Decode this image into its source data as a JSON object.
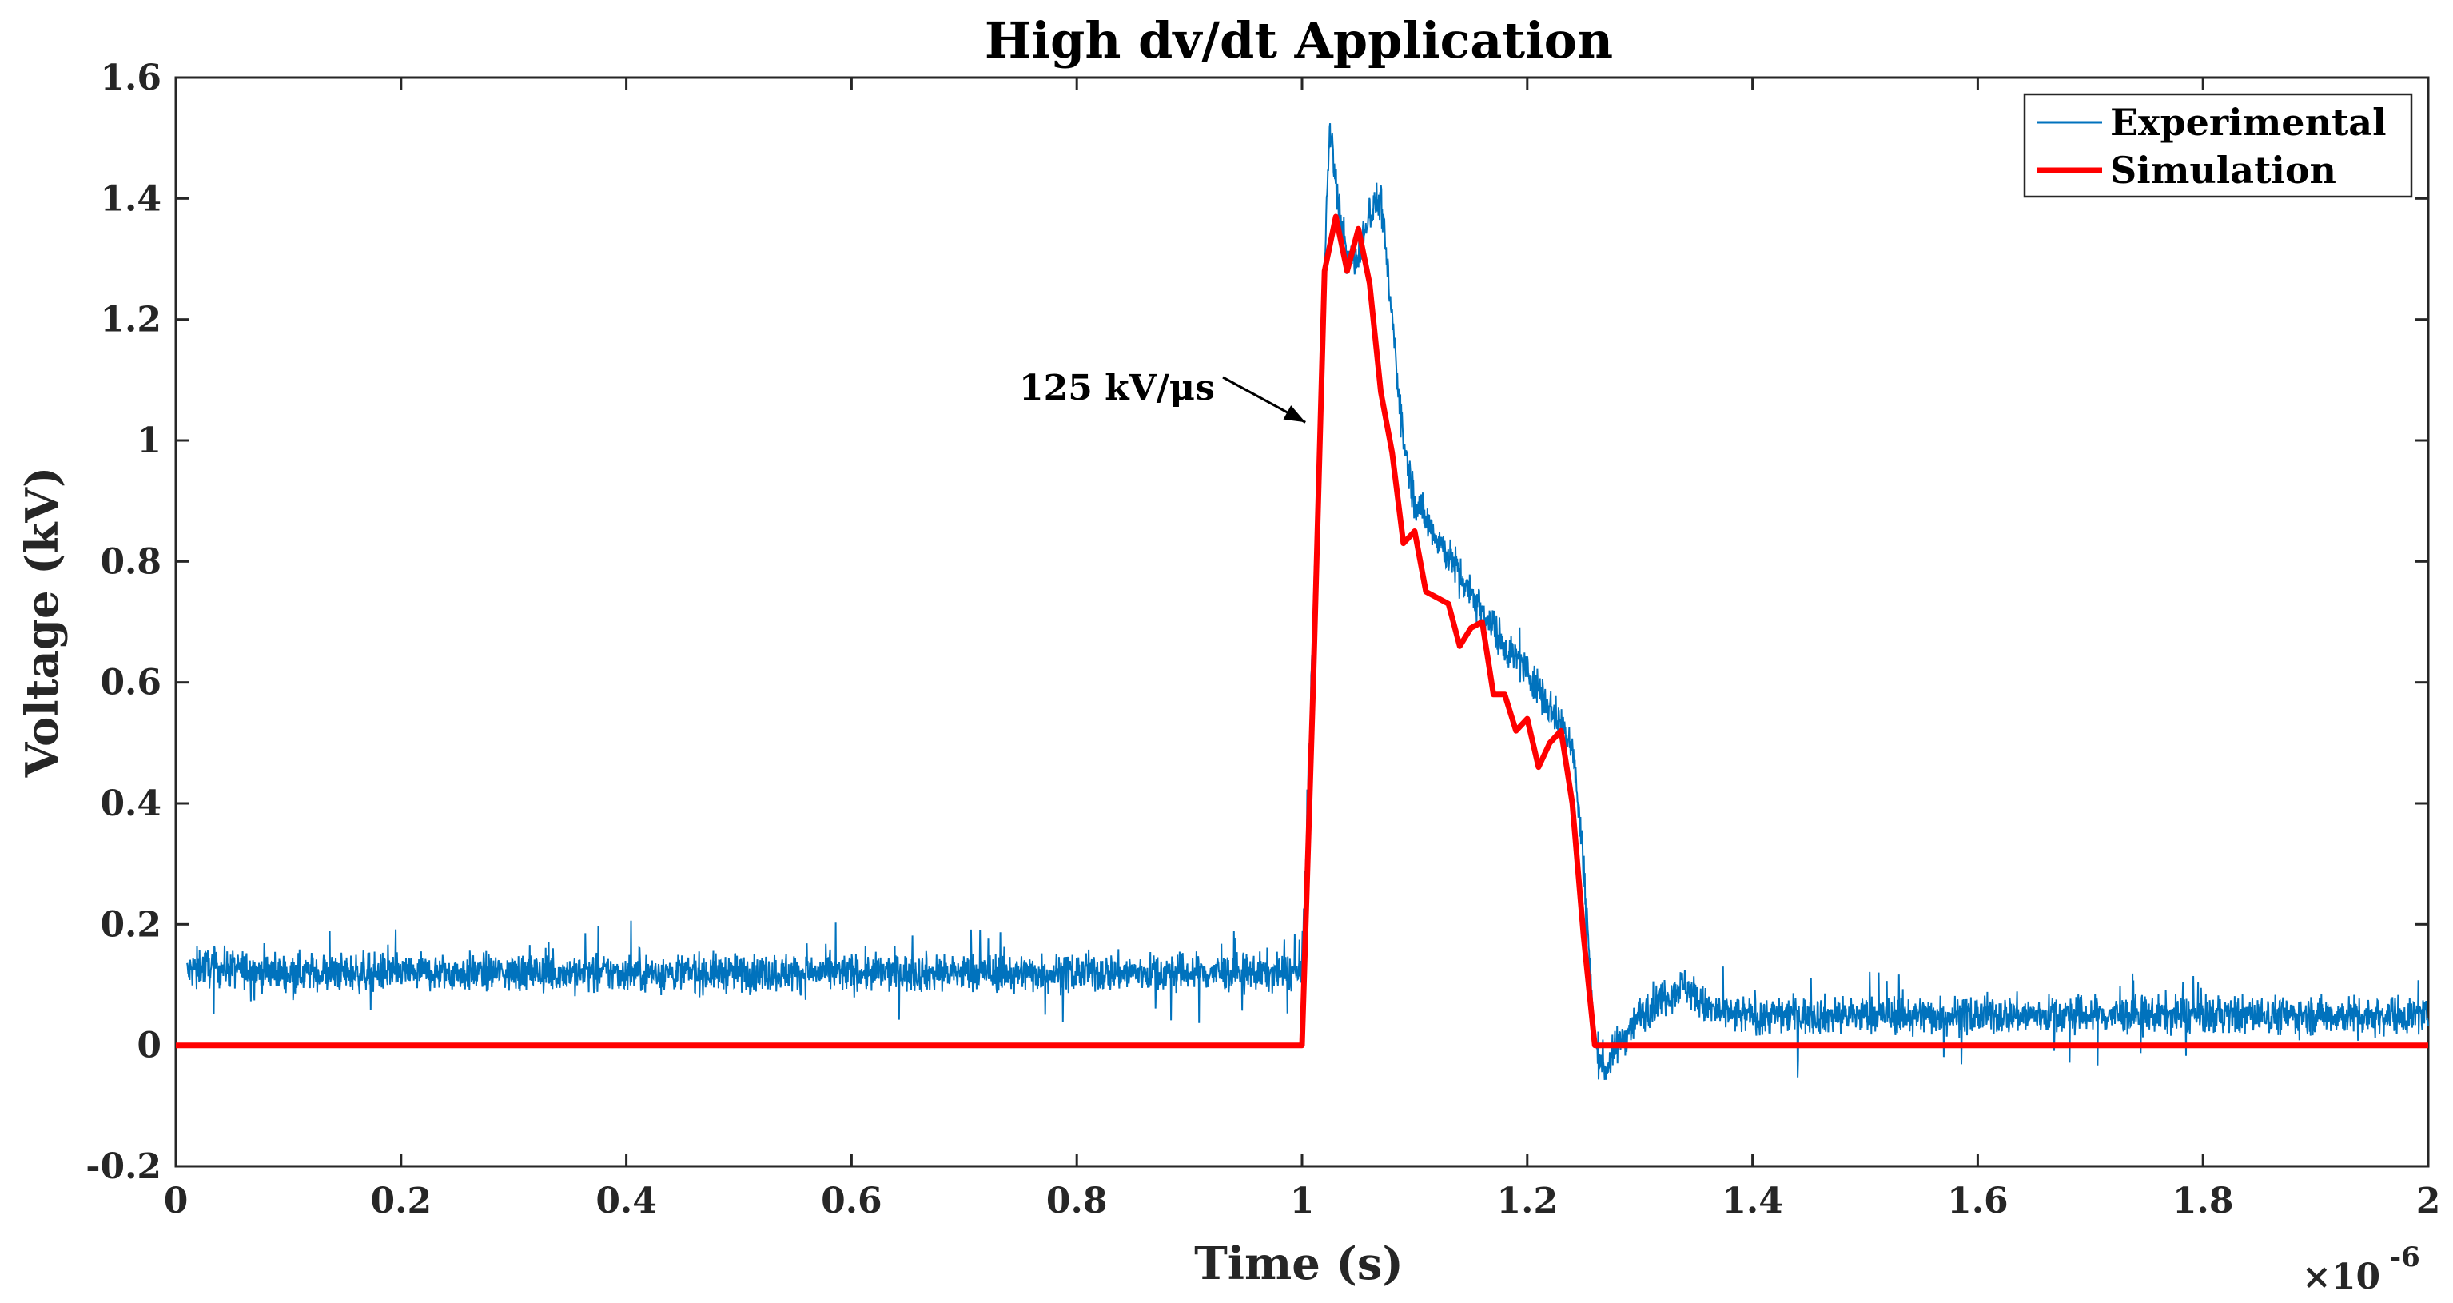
{
  "chart_data": {
    "type": "line",
    "title": "High dv/dt Application",
    "xlabel": "Time (s)",
    "ylabel": "Voltage (kV)",
    "x_exponent_label": "×10",
    "x_exponent_power": "-6",
    "xlim": [
      0,
      2
    ],
    "ylim": [
      -0.2,
      1.6
    ],
    "x_ticks": [
      0,
      0.2,
      0.4,
      0.6,
      0.8,
      1,
      1.2,
      1.4,
      1.6,
      1.8,
      2
    ],
    "x_tick_labels": [
      "0",
      "0.2",
      "0.4",
      "0.6",
      "0.8",
      "1",
      "1.2",
      "1.4",
      "1.6",
      "1.8",
      "2"
    ],
    "y_ticks": [
      -0.2,
      0,
      0.2,
      0.4,
      0.6,
      0.8,
      1,
      1.2,
      1.4,
      1.6
    ],
    "y_tick_labels": [
      "-0.2",
      "0",
      "0.2",
      "0.4",
      "0.6",
      "0.8",
      "1",
      "1.2",
      "1.4",
      "1.6"
    ],
    "grid": false,
    "legend_position": "top-right",
    "series": [
      {
        "name": "Experimental",
        "color": "#0072BD",
        "noisy": true,
        "x": [
          0.01,
          0.02,
          0.1,
          0.2,
          0.3,
          0.4,
          0.5,
          0.6,
          0.7,
          0.8,
          0.9,
          0.99,
          1.0,
          1.01,
          1.02,
          1.025,
          1.03,
          1.04,
          1.05,
          1.06,
          1.07,
          1.08,
          1.09,
          1.1,
          1.12,
          1.14,
          1.16,
          1.18,
          1.2,
          1.22,
          1.24,
          1.25,
          1.26,
          1.27,
          1.28,
          1.3,
          1.32,
          1.34,
          1.36,
          1.38,
          1.4,
          1.5,
          1.6,
          1.7,
          1.8,
          1.9,
          2.0
        ],
        "y": [
          0.12,
          0.13,
          0.12,
          0.12,
          0.12,
          0.12,
          0.12,
          0.12,
          0.12,
          0.12,
          0.12,
          0.12,
          0.12,
          0.7,
          1.3,
          1.52,
          1.42,
          1.3,
          1.3,
          1.38,
          1.4,
          1.2,
          1.0,
          0.9,
          0.84,
          0.78,
          0.72,
          0.66,
          0.62,
          0.56,
          0.5,
          0.3,
          0.0,
          -0.04,
          0.0,
          0.05,
          0.08,
          0.1,
          0.06,
          0.05,
          0.05,
          0.05,
          0.05,
          0.05,
          0.05,
          0.05,
          0.05
        ],
        "noise_amplitude": 0.03
      },
      {
        "name": "Simulation",
        "color": "#FF0000",
        "noisy": false,
        "x": [
          0,
          1.0,
          1.01,
          1.02,
          1.03,
          1.04,
          1.05,
          1.06,
          1.07,
          1.08,
          1.09,
          1.1,
          1.11,
          1.12,
          1.13,
          1.14,
          1.15,
          1.16,
          1.17,
          1.18,
          1.19,
          1.2,
          1.21,
          1.22,
          1.23,
          1.24,
          1.25,
          1.26,
          1.27,
          2.0
        ],
        "y": [
          0,
          0,
          0.6,
          1.28,
          1.37,
          1.28,
          1.35,
          1.26,
          1.08,
          0.98,
          0.83,
          0.85,
          0.75,
          0.74,
          0.73,
          0.66,
          0.69,
          0.7,
          0.58,
          0.58,
          0.52,
          0.54,
          0.46,
          0.5,
          0.52,
          0.4,
          0.18,
          0,
          0,
          0
        ]
      }
    ],
    "annotations": [
      {
        "text": "125 kV/μs",
        "target_x": 1.003,
        "target_y": 1.03
      }
    ]
  }
}
